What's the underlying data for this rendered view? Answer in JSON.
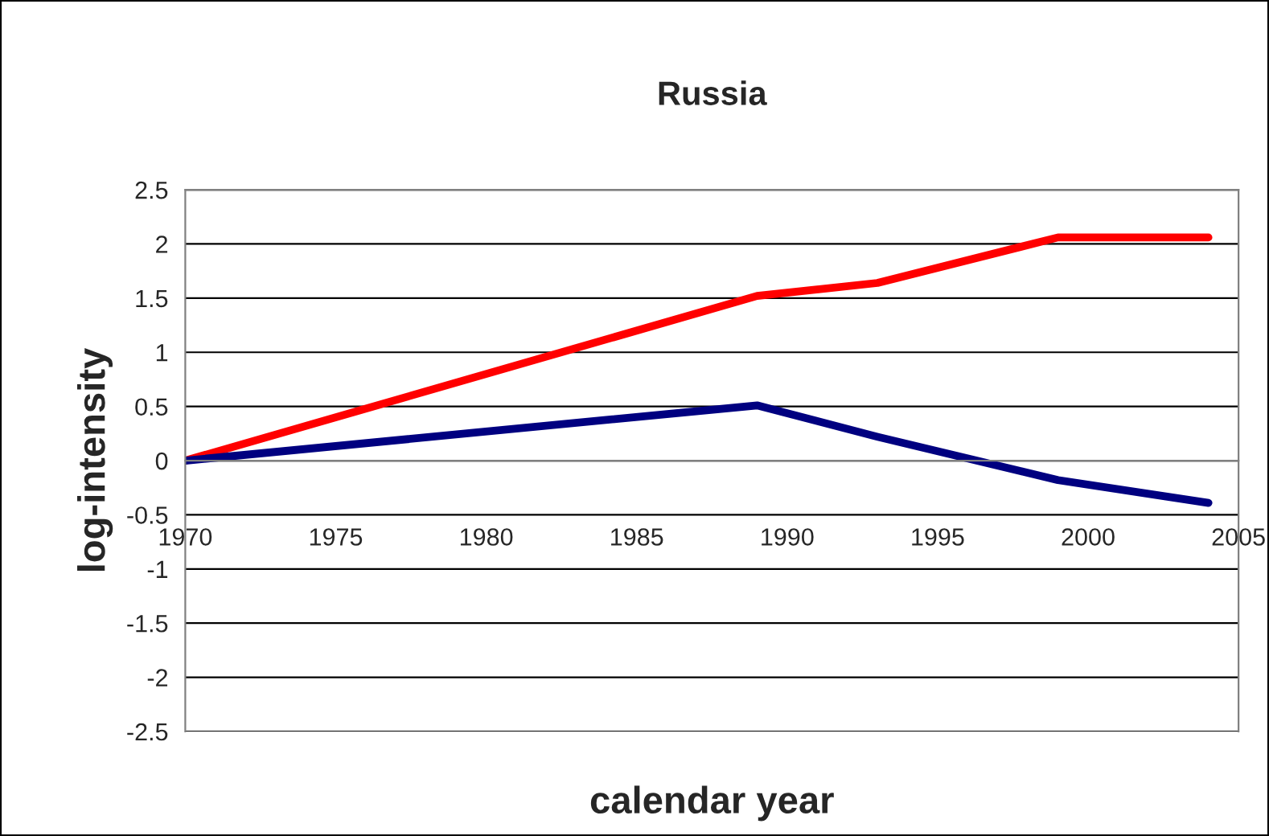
{
  "chart_data": {
    "type": "line",
    "title": "Russia",
    "xlabel": "calendar year",
    "ylabel": "log-intensity",
    "x": [
      1970,
      1989,
      1993,
      1999,
      2004
    ],
    "series": [
      {
        "color": "#ff0000",
        "values": [
          0,
          1.52,
          1.64,
          2.06,
          2.06
        ]
      },
      {
        "color": "#000080",
        "values": [
          0,
          0.51,
          0.22,
          -0.18,
          -0.39
        ]
      }
    ],
    "xlim": [
      1970,
      2005
    ],
    "xticks": [
      1970,
      1975,
      1980,
      1985,
      1990,
      1995,
      2000,
      2005
    ],
    "ylim": [
      -2.5,
      2.5
    ],
    "yticks": [
      -2.5,
      -2,
      -1.5,
      -1,
      -0.5,
      0,
      0.5,
      1,
      1.5,
      2,
      2.5
    ],
    "grid": "y",
    "marker": "none",
    "line_style": "solid"
  }
}
